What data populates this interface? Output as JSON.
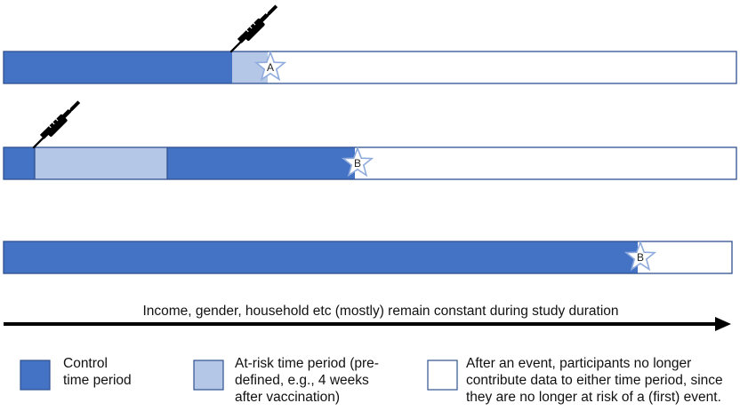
{
  "colors": {
    "control": "#4472c4",
    "at_risk": "#b4c7e7",
    "after_event": "#ffffff",
    "border": "#2f528f",
    "arrow": "#000000",
    "star_stroke": "#8faadc"
  },
  "timelines": [
    {
      "segments": [
        "control",
        "at_risk",
        "after_event"
      ],
      "vaccination_icon": "syringe-icon",
      "event_marker": "A"
    },
    {
      "segments": [
        "control",
        "at_risk",
        "control",
        "after_event"
      ],
      "vaccination_icon": "syringe-icon",
      "event_marker": "B"
    },
    {
      "segments": [
        "control",
        "after_event"
      ],
      "vaccination_icon": null,
      "event_marker": "B"
    }
  ],
  "time_arrow": {
    "caption": "Income, gender, household etc (mostly) remain constant during study duration"
  },
  "legend": {
    "control": {
      "line1": "Control",
      "line2": "time period"
    },
    "at_risk": {
      "line1": "At-risk time period (pre-",
      "line2": "defined, e.g., 4 weeks",
      "line3": "after vaccination)"
    },
    "after_event": {
      "line1": "After an event, participants no longer",
      "line2": "contribute data to either time period, since",
      "line3": "they are no longer at risk of a (first) event."
    }
  }
}
